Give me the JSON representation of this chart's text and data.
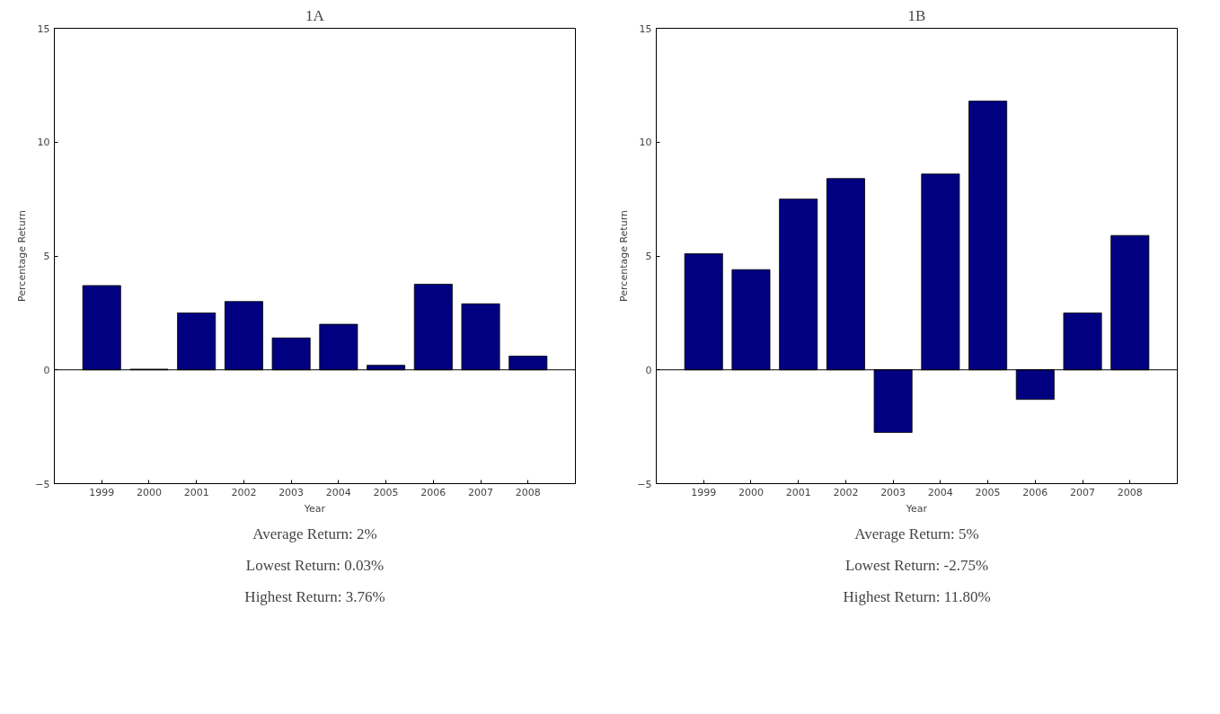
{
  "chart_data": [
    {
      "type": "bar",
      "title": "1A",
      "xlabel": "Year",
      "ylabel": "Percentage Return",
      "categories": [
        "1999",
        "2000",
        "2001",
        "2002",
        "2003",
        "2004",
        "2005",
        "2006",
        "2007",
        "2008"
      ],
      "values": [
        3.7,
        0.03,
        2.5,
        3.0,
        1.4,
        2.0,
        0.2,
        3.76,
        2.9,
        0.6
      ],
      "color": "#000080",
      "ylim": [
        -5,
        15
      ],
      "yticks": [
        -5,
        0,
        5,
        10,
        15
      ],
      "ref_lines": [
        {
          "axis": "y",
          "value": 0,
          "color": "#000000"
        }
      ],
      "annotations": [
        "Average Return: 2%",
        "Lowest Return: 0.03%",
        "Highest Return: 3.76%"
      ]
    },
    {
      "type": "bar",
      "title": "1B",
      "xlabel": "Year",
      "ylabel": "Percentage Return",
      "categories": [
        "1999",
        "2000",
        "2001",
        "2002",
        "2003",
        "2004",
        "2005",
        "2006",
        "2007",
        "2008"
      ],
      "values": [
        5.1,
        4.4,
        7.5,
        8.4,
        -2.75,
        8.6,
        11.8,
        -1.3,
        2.5,
        5.9
      ],
      "color": "#000080",
      "ylim": [
        -5,
        15
      ],
      "yticks": [
        -5,
        0,
        5,
        10,
        15
      ],
      "ref_lines": [
        {
          "axis": "y",
          "value": 0,
          "color": "#000000"
        }
      ],
      "annotations": [
        "Average Return: 5%",
        "Lowest Return: -2.75%",
        "Highest Return: 11.80%"
      ]
    }
  ]
}
